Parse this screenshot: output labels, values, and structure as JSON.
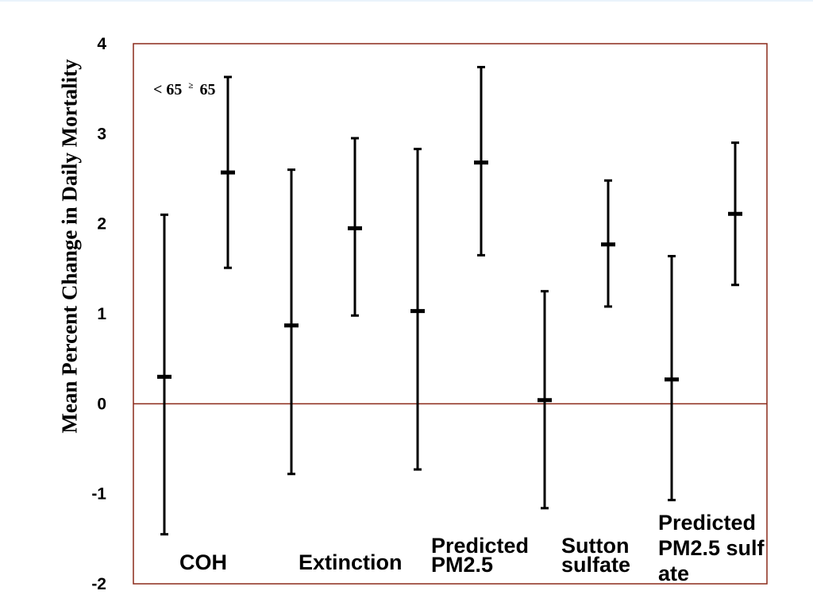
{
  "chart_data": {
    "type": "errorbar",
    "ylabel": "Mean Percent Change in Daily Mortality",
    "ylim": [
      -2,
      4
    ],
    "yticks": [
      "4",
      "3",
      "2",
      "1",
      "0",
      "-1",
      "-2"
    ],
    "legend": {
      "label_young": "< 65",
      "label_old": "65",
      "symbol": "≥"
    },
    "categories": [
      "COH",
      "Extinction",
      "Predicted PM2.5",
      "Sutton sulfate",
      "Predicted PM2.5 sulfate"
    ],
    "series": [
      {
        "name": "< 65",
        "estimates": [
          0.3,
          0.87,
          1.03,
          0.04,
          0.27
        ],
        "lower": [
          -1.45,
          -0.78,
          -0.73,
          -1.16,
          -1.07
        ],
        "upper": [
          2.1,
          2.6,
          2.83,
          1.25,
          1.64
        ]
      },
      {
        "name": "≥ 65",
        "estimates": [
          2.57,
          1.95,
          2.68,
          1.77,
          2.11
        ],
        "lower": [
          1.51,
          0.98,
          1.65,
          1.08,
          1.32
        ],
        "upper": [
          3.63,
          2.95,
          3.74,
          2.48,
          2.9
        ]
      }
    ],
    "reference_line": 0
  },
  "colors": {
    "frame": "#8b2a1a",
    "marks": "#000000"
  }
}
